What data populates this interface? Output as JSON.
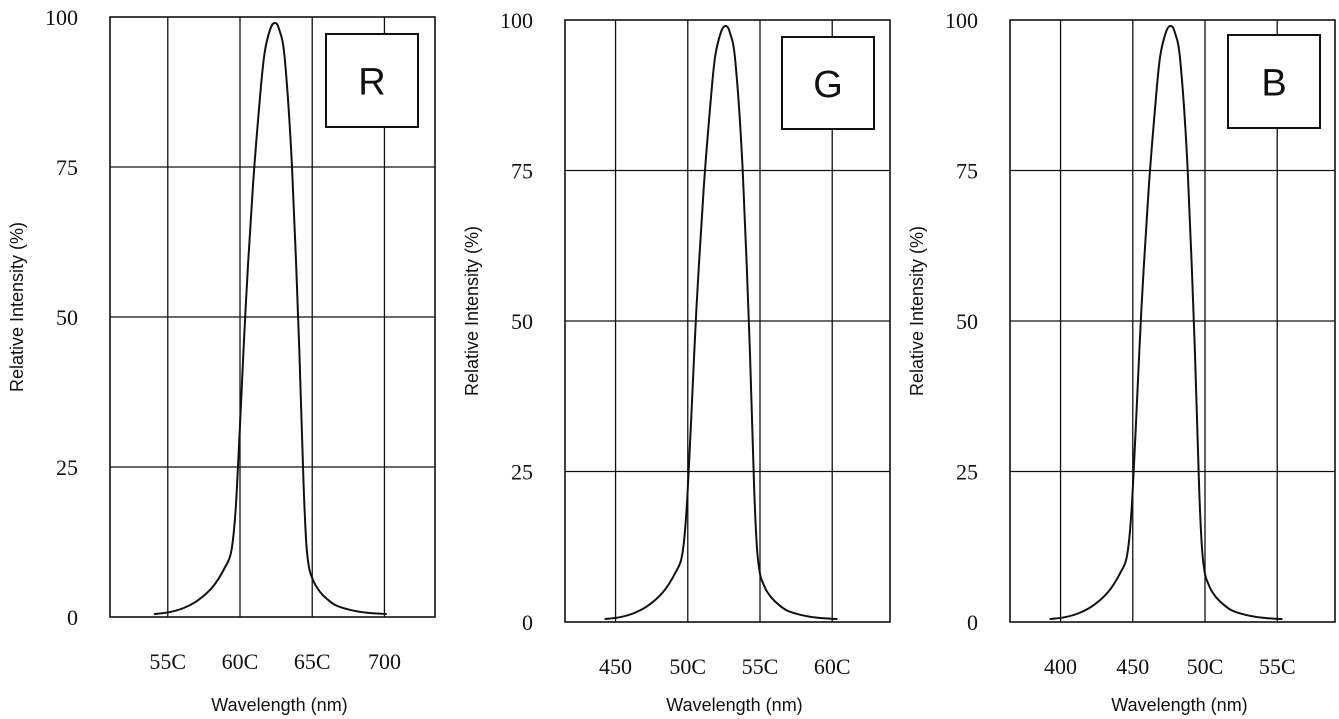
{
  "chart_data": [
    {
      "type": "line",
      "badge": "R",
      "xlabel": "Wavelength (nm)",
      "ylabel": "Relative Intensity (%)",
      "xticks": [
        "55C",
        "60C",
        "65C",
        "700"
      ],
      "yticks": [
        "0",
        "25",
        "50",
        "75",
        "100"
      ],
      "xlim": [
        510,
        735
      ],
      "ylim": [
        0,
        100
      ],
      "grid": true,
      "series": [
        {
          "x": [
            541,
            551,
            561,
            571,
            581,
            589,
            594,
            597,
            600,
            604,
            609,
            614,
            617,
            621,
            624,
            627,
            631,
            636,
            641,
            644,
            646,
            648,
            650,
            653,
            658,
            666,
            676,
            688,
            701
          ],
          "y": [
            0.5,
            0.8,
            1.5,
            2.8,
            5,
            8,
            11,
            18,
            32,
            52,
            72,
            87,
            94,
            98,
            99,
            98,
            93,
            75,
            45,
            22,
            12,
            8,
            6.5,
            5,
            3.5,
            2,
            1.2,
            0.7,
            0.5
          ]
        }
      ]
    },
    {
      "type": "line",
      "badge": "G",
      "xlabel": "Wavelength (nm)",
      "ylabel": "Relative Intensity (%)",
      "xticks": [
        "450",
        "50C",
        "55C",
        "60C"
      ],
      "yticks": [
        "0",
        "25",
        "50",
        "75",
        "100"
      ],
      "xlim": [
        415,
        640
      ],
      "ylim": [
        0,
        100
      ],
      "grid": true,
      "series": [
        {
          "x": [
            443,
            453,
            463,
            473,
            483,
            491,
            496,
            499,
            502,
            506,
            511,
            516,
            519,
            523,
            526,
            529,
            533,
            538,
            543,
            546,
            548,
            550,
            552,
            555,
            560,
            568,
            578,
            590,
            603
          ],
          "y": [
            0.5,
            0.8,
            1.5,
            2.8,
            5,
            8,
            11,
            18,
            32,
            52,
            72,
            87,
            94,
            98,
            99,
            98,
            93,
            75,
            45,
            22,
            12,
            8,
            6.5,
            5,
            3.5,
            2,
            1.2,
            0.7,
            0.5
          ]
        }
      ]
    },
    {
      "type": "line",
      "badge": "B",
      "xlabel": "Wavelength (nm)",
      "ylabel": "Relative Intensity (%)",
      "xticks": [
        "400",
        "450",
        "50C",
        "55C"
      ],
      "yticks": [
        "0",
        "25",
        "50",
        "75",
        "100"
      ],
      "xlim": [
        365,
        590
      ],
      "ylim": [
        0,
        100
      ],
      "grid": true,
      "series": [
        {
          "x": [
            393,
            403,
            413,
            423,
            433,
            441,
            446,
            449,
            452,
            456,
            461,
            466,
            469,
            473,
            476,
            479,
            483,
            488,
            493,
            496,
            498,
            500,
            502,
            505,
            510,
            518,
            528,
            540,
            553
          ],
          "y": [
            0.5,
            0.8,
            1.5,
            2.8,
            5,
            8,
            11,
            18,
            32,
            52,
            72,
            87,
            94,
            98,
            99,
            98,
            93,
            75,
            45,
            22,
            12,
            8,
            6.5,
            5,
            3.5,
            2,
            1.2,
            0.7,
            0.5
          ]
        }
      ]
    }
  ]
}
